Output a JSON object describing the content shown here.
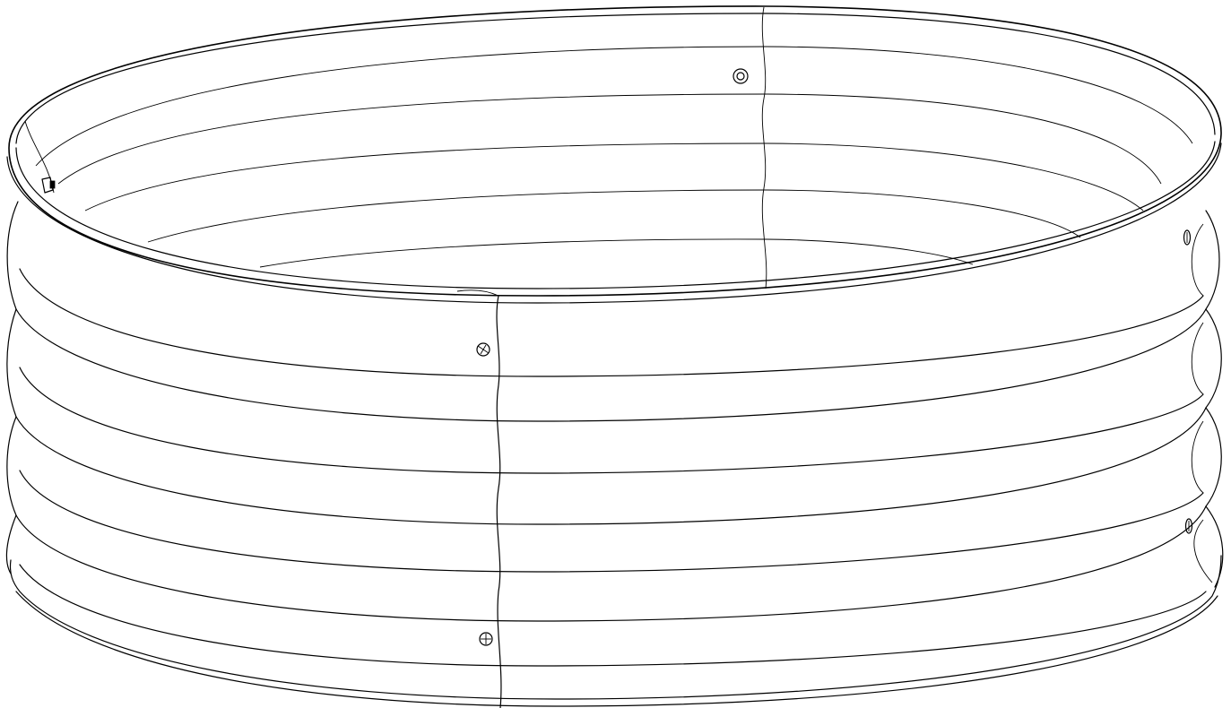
{
  "drawing": {
    "subject": "raised-garden-bed-ring",
    "style": "black-line-art",
    "colors": {
      "background": "#ffffff",
      "line": "#000000"
    },
    "corrugation_ridges": 4,
    "seam_count": 2,
    "fastener_count": 6
  }
}
